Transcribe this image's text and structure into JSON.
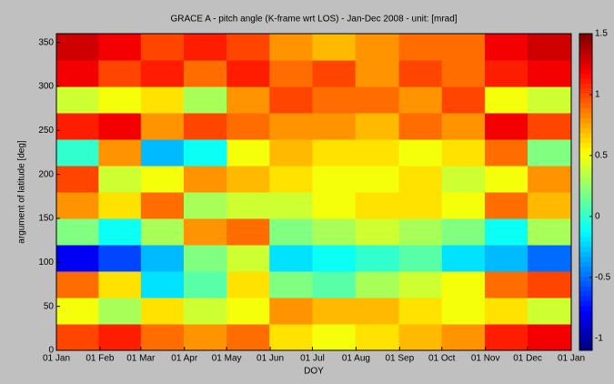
{
  "chart_data": {
    "type": "heatmap",
    "title": "GRACE A - pitch angle (K-frame wrt LOS) - Jan-Dec 2008 - unit: [mrad]",
    "xlabel": "DOY",
    "ylabel": "argument of latitude [deg]",
    "colormap": "jet",
    "x": [
      16,
      46,
      76,
      107,
      137,
      168,
      198,
      229,
      260,
      290,
      321,
      351
    ],
    "y": [
      15,
      45,
      75,
      105,
      135,
      165,
      195,
      225,
      255,
      285,
      315,
      345
    ],
    "z": [
      [
        1.0,
        1.1,
        0.9,
        0.8,
        0.9,
        0.6,
        0.5,
        0.6,
        0.7,
        0.8,
        1.1,
        1.2
      ],
      [
        0.5,
        0.3,
        0.6,
        0.4,
        0.5,
        0.8,
        0.7,
        0.7,
        0.6,
        0.5,
        0.6,
        0.4
      ],
      [
        0.9,
        0.6,
        -0.2,
        0.1,
        0.6,
        0.2,
        0.1,
        0.3,
        0.4,
        0.5,
        0.9,
        1.0
      ],
      [
        -0.8,
        -0.6,
        -0.3,
        0.2,
        0.4,
        -0.2,
        -0.1,
        0.0,
        0.1,
        -0.2,
        -0.3,
        -0.5
      ],
      [
        0.2,
        -0.1,
        0.3,
        0.8,
        0.9,
        0.2,
        0.3,
        0.4,
        0.3,
        0.2,
        -0.1,
        0.3
      ],
      [
        0.8,
        0.6,
        0.9,
        0.3,
        0.4,
        0.4,
        0.5,
        0.6,
        0.6,
        0.5,
        0.9,
        0.7
      ],
      [
        1.0,
        0.4,
        0.5,
        0.8,
        0.7,
        0.6,
        0.5,
        0.5,
        0.6,
        0.4,
        0.5,
        0.8
      ],
      [
        0.0,
        0.8,
        -0.3,
        -0.1,
        0.5,
        0.7,
        0.6,
        0.6,
        0.5,
        0.6,
        0.9,
        0.2
      ],
      [
        1.1,
        1.2,
        0.8,
        1.0,
        0.9,
        0.8,
        0.8,
        0.7,
        0.9,
        0.8,
        1.2,
        1.0
      ],
      [
        0.4,
        0.5,
        0.6,
        0.3,
        0.8,
        1.0,
        0.9,
        0.9,
        0.8,
        1.0,
        0.5,
        0.4
      ],
      [
        1.2,
        1.0,
        1.1,
        0.9,
        1.1,
        0.9,
        1.0,
        0.8,
        1.0,
        0.9,
        1.1,
        1.2
      ],
      [
        1.3,
        1.2,
        1.0,
        1.1,
        1.0,
        0.8,
        0.7,
        0.8,
        0.9,
        0.9,
        1.2,
        1.3
      ]
    ],
    "xlim": [
      1,
      367
    ],
    "xticks": [
      {
        "value": 1,
        "label": "01 Jan"
      },
      {
        "value": 32,
        "label": "01 Feb"
      },
      {
        "value": 61,
        "label": "01 Mar"
      },
      {
        "value": 92,
        "label": "01 Apr"
      },
      {
        "value": 122,
        "label": "01 May"
      },
      {
        "value": 153,
        "label": "01 Jun"
      },
      {
        "value": 183,
        "label": "01 Jul"
      },
      {
        "value": 214,
        "label": "01 Aug"
      },
      {
        "value": 245,
        "label": "01 Sep"
      },
      {
        "value": 275,
        "label": "01 Oct"
      },
      {
        "value": 306,
        "label": "01 Nov"
      },
      {
        "value": 336,
        "label": "01 Dec"
      },
      {
        "value": 367,
        "label": "01 Jan"
      }
    ],
    "ylim": [
      0,
      360
    ],
    "yticks": [
      0,
      50,
      100,
      150,
      200,
      250,
      300,
      350
    ],
    "clim": [
      -1.1,
      1.5
    ],
    "cticks": [
      -1,
      -0.5,
      0,
      0.5,
      1,
      1.5
    ]
  }
}
